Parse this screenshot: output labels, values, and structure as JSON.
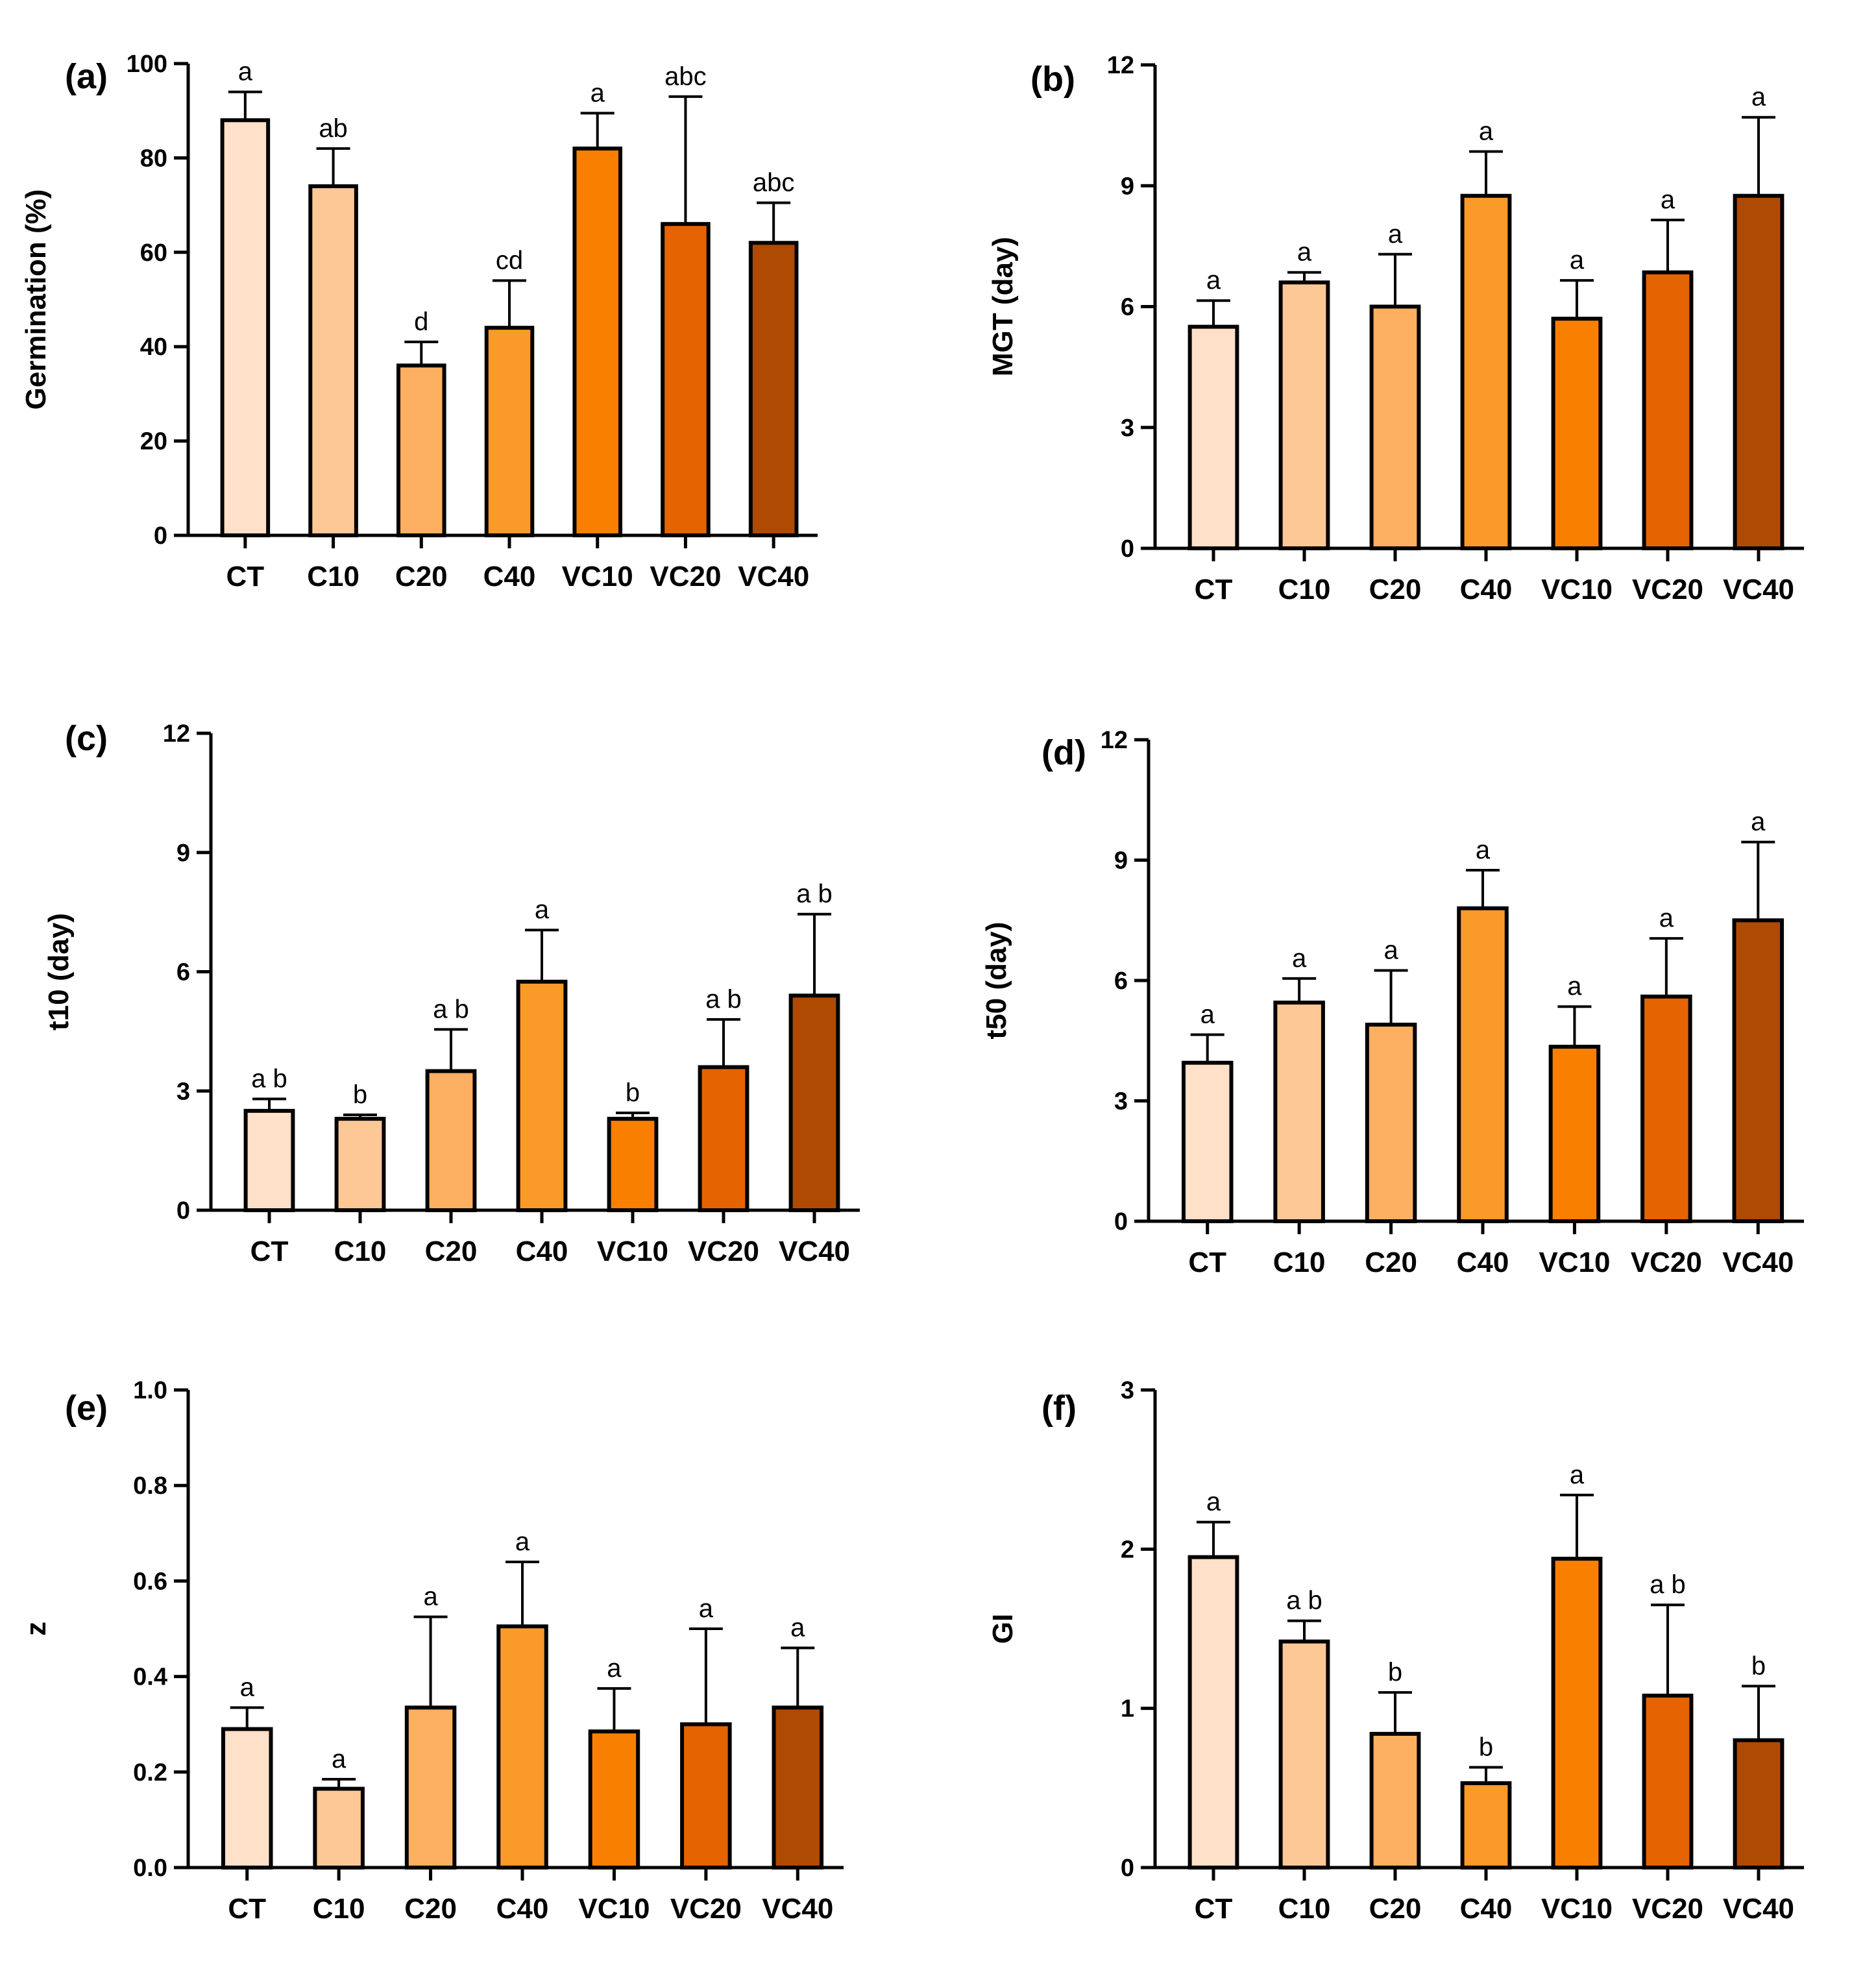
{
  "figure": {
    "categories": [
      "CT",
      "C10",
      "C20",
      "C40",
      "VC10",
      "VC20",
      "VC40"
    ],
    "colors": [
      "#FFE0C8",
      "#FDC896",
      "#FDB062",
      "#F99A29",
      "#F97F00",
      "#E56300",
      "#AF4A02"
    ]
  },
  "chart_data": [
    {
      "type": "bar",
      "panel": "(a)",
      "ylabel": "Germination (%)",
      "ylim": [
        0,
        100
      ],
      "yticks": [
        0,
        20,
        40,
        60,
        80,
        100
      ],
      "categories": [
        "CT",
        "C10",
        "C20",
        "C40",
        "VC10",
        "VC20",
        "VC40"
      ],
      "values": [
        88,
        74,
        36,
        44,
        82,
        66,
        62
      ],
      "errors": [
        6,
        8,
        5,
        10,
        7.5,
        27,
        8.5
      ],
      "labels": [
        "a",
        "ab",
        "d",
        "cd",
        "a",
        "abc",
        "abc"
      ]
    },
    {
      "type": "bar",
      "panel": "(b)",
      "ylabel": "MGT (day)",
      "ylim": [
        0,
        12
      ],
      "yticks": [
        0,
        3,
        6,
        9,
        12
      ],
      "categories": [
        "CT",
        "C10",
        "C20",
        "C40",
        "VC10",
        "VC20",
        "VC40"
      ],
      "values": [
        5.5,
        6.6,
        6.0,
        8.75,
        5.7,
        6.85,
        8.75
      ],
      "errors": [
        0.65,
        0.25,
        1.3,
        1.1,
        0.95,
        1.3,
        1.95
      ],
      "labels": [
        "a",
        "a",
        "a",
        "a",
        "a",
        "a",
        "a"
      ]
    },
    {
      "type": "bar",
      "panel": "(c)",
      "ylabel": "t10 (day)",
      "ylim": [
        0,
        12
      ],
      "yticks": [
        0,
        3,
        6,
        9,
        12
      ],
      "categories": [
        "CT",
        "C10",
        "C20",
        "C40",
        "VC10",
        "VC20",
        "VC40"
      ],
      "values": [
        2.5,
        2.3,
        3.5,
        5.75,
        2.3,
        3.6,
        5.4
      ],
      "errors": [
        0.3,
        0.1,
        1.05,
        1.3,
        0.15,
        1.2,
        2.05
      ],
      "labels": [
        "a b",
        "b",
        "a b",
        "a",
        "b",
        "a b",
        "a b"
      ]
    },
    {
      "type": "bar",
      "panel": "(d)",
      "ylabel": "t50 (day)",
      "ylim": [
        0,
        12
      ],
      "yticks": [
        0,
        3,
        6,
        9,
        12
      ],
      "categories": [
        "CT",
        "C10",
        "C20",
        "C40",
        "VC10",
        "VC20",
        "VC40"
      ],
      "values": [
        3.95,
        5.45,
        4.9,
        7.8,
        4.35,
        5.6,
        7.5
      ],
      "errors": [
        0.7,
        0.6,
        1.35,
        0.95,
        1.0,
        1.45,
        1.95
      ],
      "labels": [
        "a",
        "a",
        "a",
        "a",
        "a",
        "a",
        "a"
      ]
    },
    {
      "type": "bar",
      "panel": "(e)",
      "ylabel": "z",
      "ylim": [
        0,
        1.0
      ],
      "yticks": [
        "0.0",
        "0.2",
        "0.4",
        "0.6",
        "0.8",
        "1.0"
      ],
      "categories": [
        "CT",
        "C10",
        "C20",
        "C40",
        "VC10",
        "VC20",
        "VC40"
      ],
      "values": [
        0.29,
        0.165,
        0.335,
        0.505,
        0.285,
        0.3,
        0.335
      ],
      "errors": [
        0.045,
        0.02,
        0.19,
        0.135,
        0.09,
        0.2,
        0.125
      ],
      "labels": [
        "a",
        "a",
        "a",
        "a",
        "a",
        "a",
        "a"
      ]
    },
    {
      "type": "bar",
      "panel": "(f)",
      "ylabel": "GI",
      "ylim": [
        0,
        3
      ],
      "yticks": [
        0,
        1,
        2,
        3
      ],
      "categories": [
        "CT",
        "C10",
        "C20",
        "C40",
        "VC10",
        "VC20",
        "VC40"
      ],
      "values": [
        1.95,
        1.42,
        0.84,
        0.53,
        1.94,
        1.08,
        0.8
      ],
      "errors": [
        0.22,
        0.13,
        0.26,
        0.1,
        0.4,
        0.57,
        0.34
      ],
      "labels": [
        "a",
        "a b",
        "b",
        "b",
        "a",
        "a b",
        "b"
      ]
    }
  ]
}
